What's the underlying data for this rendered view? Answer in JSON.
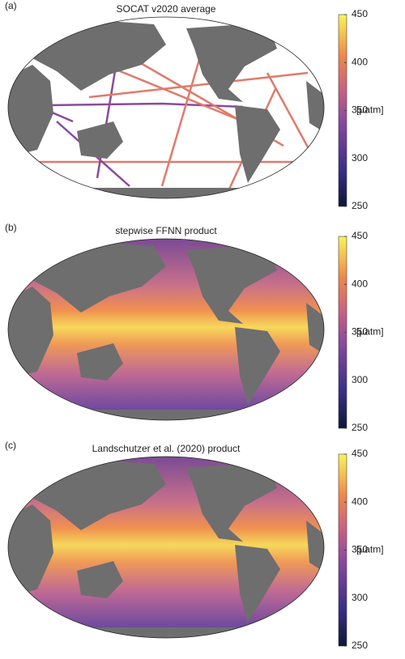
{
  "panels": [
    {
      "label": "(a)",
      "title": "SOCAT v2020 average",
      "colorbar": {
        "lim": [
          250,
          450
        ],
        "ticks": [
          250,
          300,
          350,
          400,
          450
        ],
        "label": "[µatm]"
      }
    },
    {
      "label": "(b)",
      "title": "stepwise FFNN product",
      "colorbar": {
        "lim": [
          250,
          450
        ],
        "ticks": [
          250,
          300,
          350,
          400,
          450
        ],
        "label": "[µatm]"
      }
    },
    {
      "label": "(c)",
      "title": "Landschutzer et al. (2020) product",
      "colorbar": {
        "lim": [
          250,
          450
        ],
        "ticks": [
          250,
          300,
          350,
          400,
          450
        ],
        "label": "[µatm]"
      }
    }
  ]
}
